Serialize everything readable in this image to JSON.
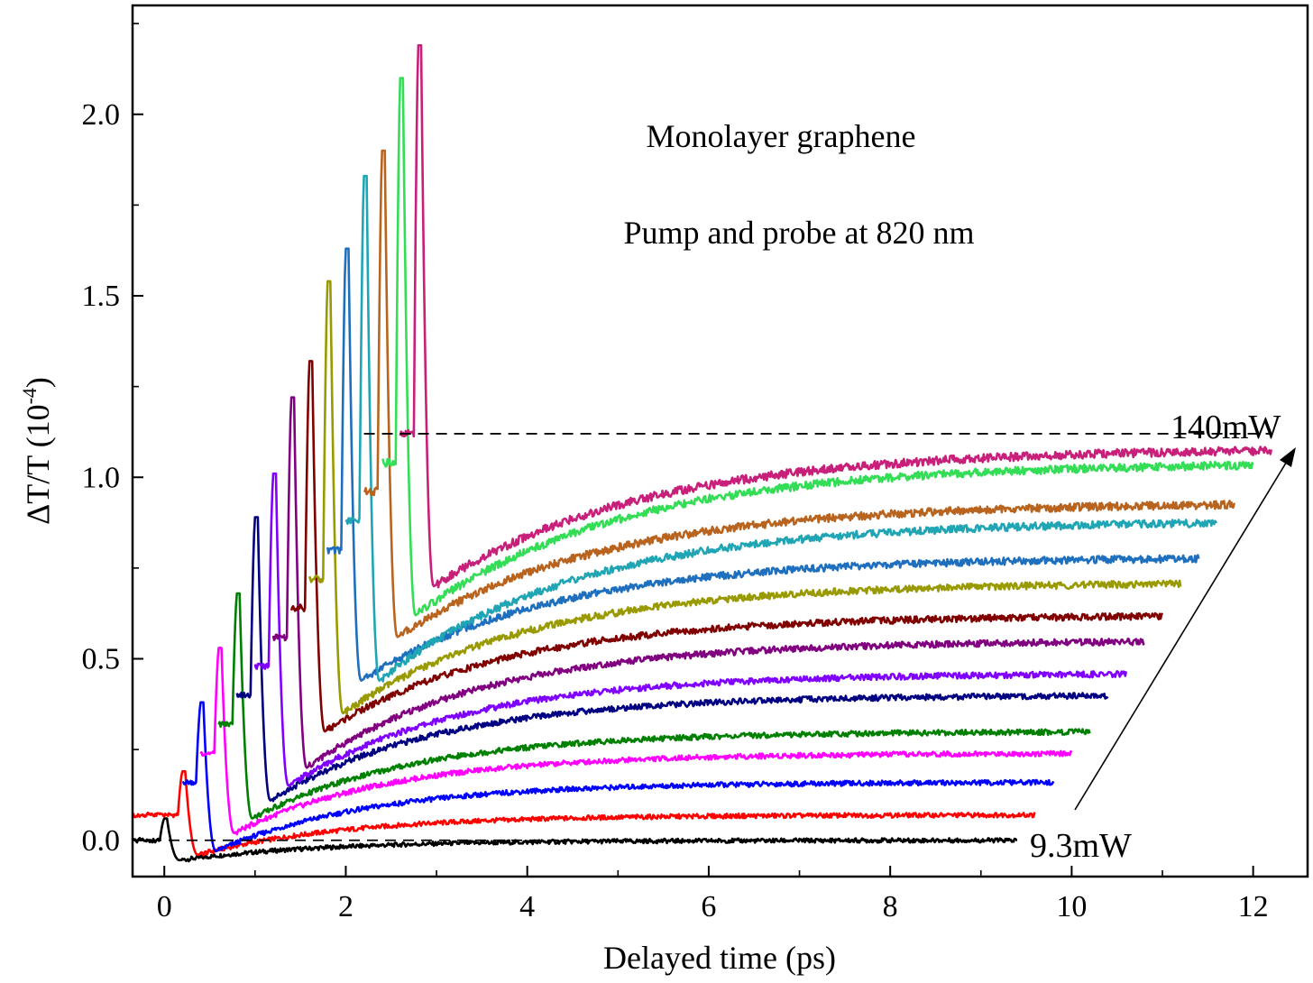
{
  "chart_data": {
    "type": "line",
    "xlabel": "Delayed time (ps)",
    "ylabel": "ΔT/T (10",
    "ylabel_exponent": "-4",
    "ylabel_close": ")",
    "xlim": [
      -0.35,
      12.6
    ],
    "ylim": [
      -0.1,
      2.3
    ],
    "x_ticks": [
      0,
      2,
      4,
      6,
      8,
      10,
      12
    ],
    "y_ticks": [
      0.0,
      0.5,
      1.0,
      1.5,
      2.0
    ],
    "x_tick_labels": [
      "0",
      "2",
      "4",
      "6",
      "8",
      "10",
      "12"
    ],
    "y_tick_labels": [
      "0.0",
      "0.5",
      "1.0",
      "1.5",
      "2.0"
    ],
    "grid": false,
    "annotations": [
      "Monolayer graphene",
      "Pump and probe at 820 nm"
    ],
    "low_power_label": "9.3mW",
    "high_power_label": "140mW",
    "offset_per_trace": {
      "x": 0.2,
      "y": 0.0813
    },
    "base_trace": {
      "x": [
        -0.35,
        -0.1,
        -0.02,
        0.0,
        0.05,
        0.1,
        0.15,
        0.25,
        0.4,
        0.6,
        0.8,
        1.0,
        1.5,
        2.0,
        3.0,
        4.0,
        6.0,
        8.0,
        9.4
      ],
      "y": [
        0.0,
        0.005,
        0.03,
        0.06,
        0.035,
        -0.04,
        -0.055,
        -0.055,
        -0.045,
        -0.037,
        -0.03,
        -0.025,
        -0.017,
        -0.012,
        -0.007,
        -0.004,
        0.0,
        0.0,
        0.0
      ]
    },
    "series": [
      {
        "color": "#000000",
        "pre": 0.0,
        "peak": 0.06,
        "dip": -0.055,
        "end_x": 9.4,
        "plateau": 0.0
      },
      {
        "color": "#ff0000",
        "pre": 0.07,
        "peak": 0.19,
        "dip": -0.04,
        "end_x": 9.6,
        "plateau": 0.07
      },
      {
        "color": "#0000ff",
        "pre": 0.16,
        "peak": 0.38,
        "dip": -0.03,
        "end_x": 9.8,
        "plateau": 0.16
      },
      {
        "color": "#ff00ff",
        "pre": 0.24,
        "peak": 0.53,
        "dip": 0.02,
        "end_x": 10.0,
        "plateau": 0.24
      },
      {
        "color": "#008000",
        "pre": 0.32,
        "peak": 0.68,
        "dip": 0.06,
        "end_x": 10.2,
        "plateau": 0.3
      },
      {
        "color": "#000080",
        "pre": 0.4,
        "peak": 0.89,
        "dip": 0.11,
        "end_x": 10.4,
        "plateau": 0.4
      },
      {
        "color": "#8000ff",
        "pre": 0.48,
        "peak": 1.01,
        "dip": 0.15,
        "end_x": 10.6,
        "plateau": 0.46
      },
      {
        "color": "#800080",
        "pre": 0.56,
        "peak": 1.22,
        "dip": 0.2,
        "end_x": 10.8,
        "plateau": 0.55
      },
      {
        "color": "#800000",
        "pre": 0.64,
        "peak": 1.32,
        "dip": 0.3,
        "end_x": 11.0,
        "plateau": 0.62
      },
      {
        "color": "#999900",
        "pre": 0.72,
        "peak": 1.54,
        "dip": 0.35,
        "end_x": 11.2,
        "plateau": 0.71
      },
      {
        "color": "#1e6fbe",
        "pre": 0.8,
        "peak": 1.63,
        "dip": 0.44,
        "end_x": 11.4,
        "plateau": 0.78
      },
      {
        "color": "#20a5b5",
        "pre": 0.88,
        "peak": 1.83,
        "dip": 0.44,
        "end_x": 11.6,
        "plateau": 0.88
      },
      {
        "color": "#b8641e",
        "pre": 0.96,
        "peak": 1.9,
        "dip": 0.56,
        "end_x": 11.8,
        "plateau": 0.93
      },
      {
        "color": "#33dd55",
        "pre": 1.04,
        "peak": 2.1,
        "dip": 0.62,
        "end_x": 12.0,
        "plateau": 1.04
      },
      {
        "color": "#c8207a",
        "pre": 1.12,
        "peak": 2.19,
        "dip": 0.7,
        "end_x": 12.2,
        "plateau": 1.08
      }
    ],
    "dashed_refs": [
      {
        "x0": -0.35,
        "x1": 9.4,
        "y": 0.0
      },
      {
        "x0": 2.2,
        "x1": 12.2,
        "y": 1.12
      }
    ]
  }
}
